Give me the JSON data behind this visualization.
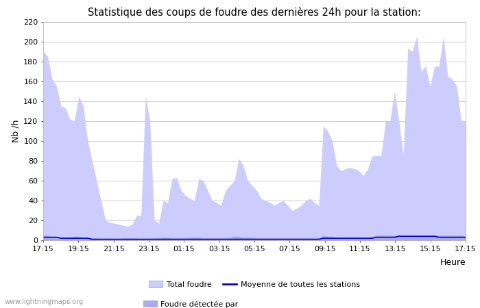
{
  "title": "Statistique des coups de foudre des dernières 24h pour la station:",
  "xlabel": "Heure",
  "ylabel": "Nb /h",
  "ylim": [
    0,
    220
  ],
  "yticks": [
    0,
    20,
    40,
    60,
    80,
    100,
    120,
    140,
    160,
    180,
    200,
    220
  ],
  "xtick_labels": [
    "17:15",
    "19:15",
    "21:15",
    "23:15",
    "01:15",
    "03:15",
    "05:15",
    "07:15",
    "09:15",
    "11:15",
    "13:15",
    "15:15",
    "17:15"
  ],
  "watermark": "www.lightningmaps.org",
  "legend_items": [
    {
      "label": "Total foudre",
      "color": "#ccccff",
      "type": "patch"
    },
    {
      "label": "Moyenne de toutes les stations",
      "color": "#0000cc",
      "type": "line"
    },
    {
      "label": "Foudre détectée par",
      "color": "#aaaaee",
      "type": "patch"
    }
  ],
  "bg_color": "#ffffff",
  "plot_bg_color": "#ffffff",
  "grid_color": "#cccccc",
  "area_fill_color": "#ccccff",
  "area2_fill_color": "#aaaaee",
  "line_color": "#0000cc",
  "total_foudre": [
    190,
    185,
    162,
    155,
    135,
    133,
    122,
    120,
    145,
    135,
    100,
    80,
    60,
    40,
    20,
    18,
    17,
    16,
    15,
    14,
    16,
    25,
    25,
    145,
    120,
    20,
    17,
    40,
    38,
    62,
    63,
    50,
    45,
    42,
    40,
    62,
    60,
    50,
    40,
    38,
    35,
    50,
    55,
    60,
    82,
    75,
    60,
    55,
    50,
    42,
    40,
    38,
    35,
    38,
    40,
    35,
    30,
    32,
    35,
    40,
    42,
    38,
    35,
    115,
    110,
    100,
    75,
    70,
    72,
    73,
    72,
    70,
    65,
    72,
    85,
    85,
    85,
    120,
    120,
    150,
    120,
    85,
    193,
    190,
    205,
    170,
    175,
    155,
    175,
    175,
    205,
    165,
    162,
    155,
    120,
    120
  ],
  "foudre_detectee": [
    5,
    5,
    4,
    4,
    3,
    3,
    3,
    4,
    4,
    3,
    3,
    2,
    2,
    1,
    1,
    1,
    1,
    1,
    2,
    2,
    2,
    2,
    1,
    1,
    1,
    2,
    2,
    3,
    3,
    2,
    2,
    2,
    2,
    3,
    3,
    3,
    2,
    2,
    2,
    2,
    2,
    2,
    3,
    4,
    4,
    3,
    3,
    3,
    2,
    2,
    2,
    2,
    2,
    2,
    2,
    2,
    2,
    2,
    2,
    2,
    2,
    2,
    2,
    5,
    4,
    4,
    3,
    3,
    3,
    3,
    3,
    3,
    3,
    3,
    4,
    5,
    5,
    5,
    5,
    5,
    5,
    5,
    5,
    5,
    5,
    5,
    5,
    5,
    5,
    5,
    5,
    5,
    5,
    5,
    5,
    4
  ],
  "moyenne_stations": [
    3,
    3,
    3,
    3,
    2,
    2,
    2,
    2,
    2,
    2,
    2,
    1,
    1,
    1,
    1,
    1,
    1,
    1,
    1,
    1,
    1,
    1,
    1,
    1,
    1,
    1,
    1,
    1,
    1,
    1,
    1,
    1,
    1,
    1,
    1,
    1,
    1,
    1,
    1,
    1,
    1,
    1,
    1,
    1,
    1,
    1,
    1,
    1,
    1,
    1,
    1,
    1,
    1,
    1,
    1,
    1,
    1,
    1,
    1,
    1,
    1,
    1,
    1,
    2,
    2,
    2,
    2,
    2,
    2,
    2,
    2,
    2,
    2,
    2,
    2,
    3,
    3,
    3,
    3,
    3,
    4,
    4,
    4,
    4,
    4,
    4,
    4,
    4,
    4,
    3,
    3,
    3,
    3,
    3,
    3,
    3
  ]
}
